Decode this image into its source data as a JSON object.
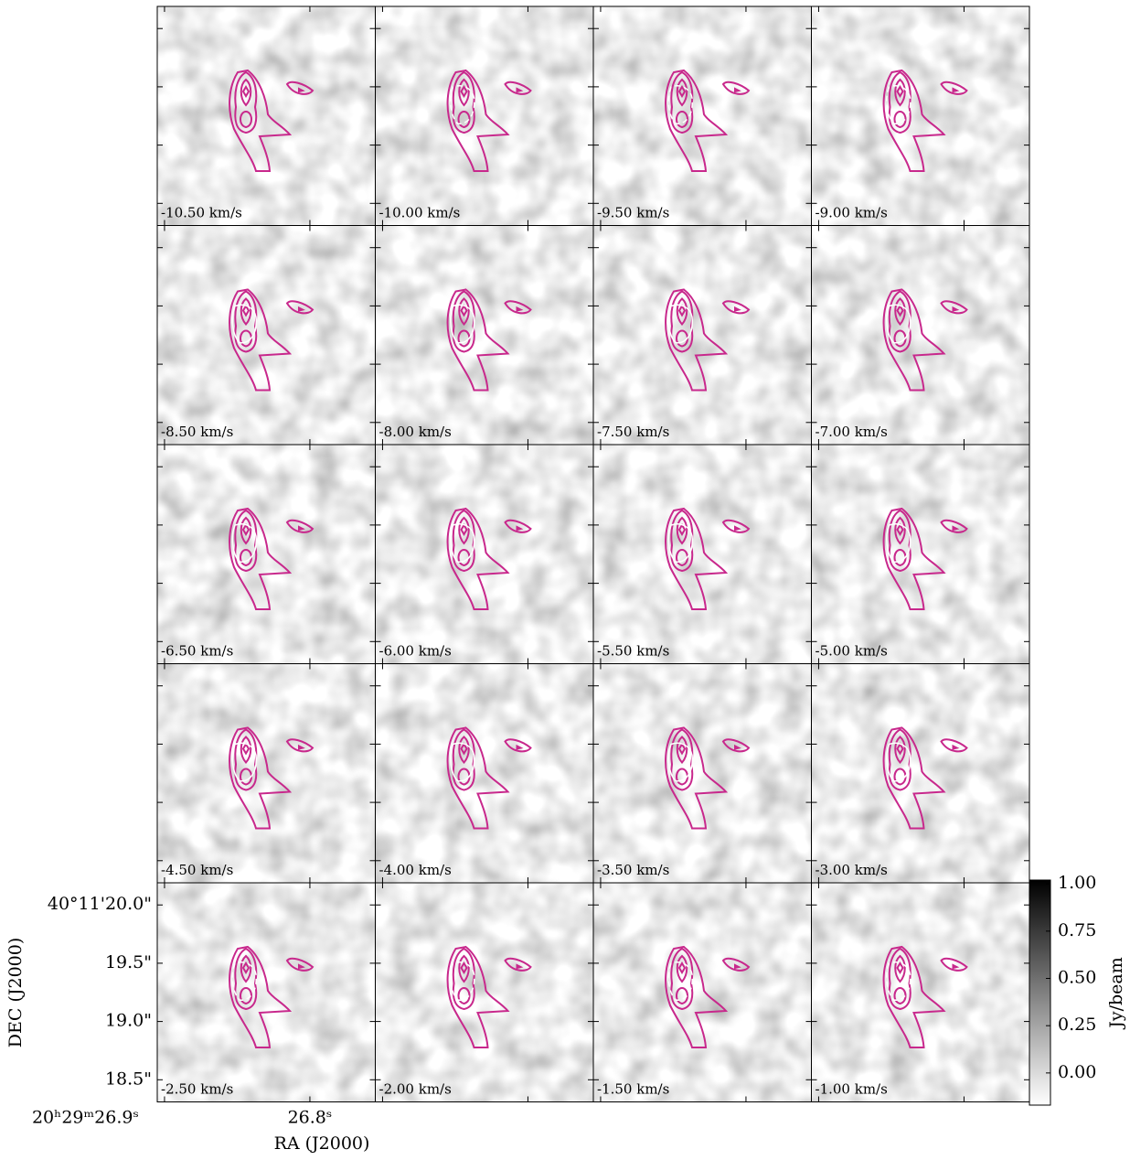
{
  "chart_data": {
    "type": "channel_map",
    "panels": [
      "-10.50 km/s",
      "-10.00 km/s",
      "-9.50 km/s",
      "-9.00 km/s",
      "-8.50 km/s",
      "-8.00 km/s",
      "-7.50 km/s",
      "-7.00 km/s",
      "-6.50 km/s",
      "-6.00 km/s",
      "-5.50 km/s",
      "-5.00 km/s",
      "-4.50 km/s",
      "-4.00 km/s",
      "-3.50 km/s",
      "-3.00 km/s",
      "-2.50 km/s",
      "-2.00 km/s",
      "-1.50 km/s",
      "-1.00 km/s"
    ],
    "columns": 4,
    "xlabel": "RA (J2000)",
    "ylabel": "DEC (J2000)",
    "xlim": [
      26.905,
      26.755
    ],
    "xticks": [
      {
        "value": 26.9,
        "label": "20ʰ29ᵐ26.9ˢ"
      },
      {
        "value": 26.8,
        "label": "26.8ˢ"
      }
    ],
    "ylim": [
      18.31,
      20.19
    ],
    "yticks": [
      {
        "value": 20.0,
        "label": "40°11'20.0\""
      },
      {
        "value": 19.5,
        "label": "19.5\""
      },
      {
        "value": 19.0,
        "label": "19.0\""
      },
      {
        "value": 18.5,
        "label": "18.5\""
      }
    ],
    "colorbar": {
      "label": "Jy/beam",
      "clim": [
        -0.17,
        1.02
      ],
      "ticks": [
        {
          "value": 1.0,
          "label": "1.00"
        },
        {
          "value": 0.75,
          "label": "0.75"
        },
        {
          "value": 0.5,
          "label": "0.50"
        },
        {
          "value": 0.25,
          "label": "0.25"
        },
        {
          "value": 0.0,
          "label": "0.00"
        }
      ]
    },
    "contour_color": "#c8288c"
  }
}
